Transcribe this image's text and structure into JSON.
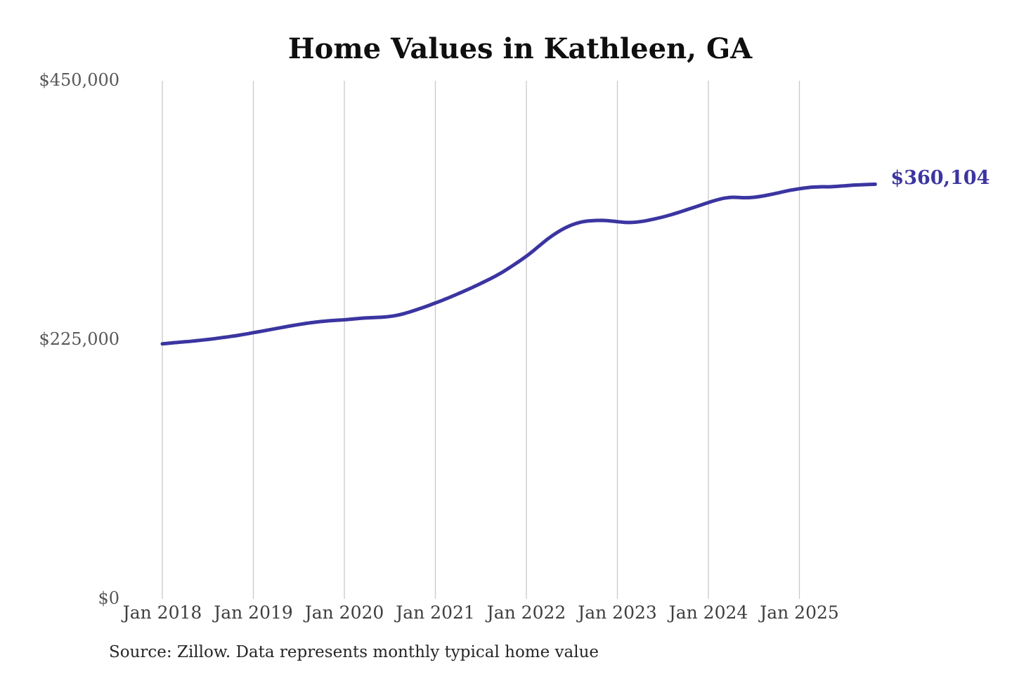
{
  "title": "Home Values in Kathleen, GA",
  "end_label": "$360,104",
  "source": "Source: Zillow. Data represents monthly typical home value",
  "colors": {
    "line": "#3b35a1",
    "end_label": "#3b35a1",
    "grid": "#c9c9c9",
    "title_text": "#0f0f0f",
    "y_tick_text": "#57575a",
    "x_tick_text": "#3f3f41",
    "source_text": "#262626",
    "background": "#ffffff"
  },
  "axes": {
    "y_ticks": [
      {
        "label": "$450,000",
        "value": 450000
      },
      {
        "label": "$225,000",
        "value": 225000
      },
      {
        "label": "$0",
        "value": 0
      }
    ],
    "x_ticks": [
      {
        "label": "Jan 2018",
        "month_index": 0
      },
      {
        "label": "Jan 2019",
        "month_index": 12
      },
      {
        "label": "Jan 2020",
        "month_index": 24
      },
      {
        "label": "Jan 2021",
        "month_index": 36
      },
      {
        "label": "Jan 2022",
        "month_index": 48
      },
      {
        "label": "Jan 2023",
        "month_index": 60
      },
      {
        "label": "Jan 2024",
        "month_index": 72
      },
      {
        "label": "Jan 2025",
        "month_index": 84
      }
    ]
  },
  "chart_data": {
    "type": "line",
    "title": "Home Values in Kathleen, GA",
    "xlabel": "",
    "ylabel": "",
    "ylim": [
      0,
      450000
    ],
    "grid": "vertical-only",
    "legend": "none",
    "unit": "USD",
    "frequency": "monthly",
    "latest_value": 360104,
    "latest_value_label": "$360,104",
    "series": [
      {
        "name": "Typical home value",
        "start_month": "2018-01",
        "end_month": "2025-11",
        "values": [
          221500,
          222100,
          222700,
          223300,
          223900,
          224600,
          225300,
          226100,
          227000,
          227900,
          228900,
          230000,
          231200,
          232400,
          233600,
          234800,
          236000,
          237200,
          238300,
          239300,
          240200,
          240900,
          241500,
          242000,
          242400,
          243000,
          243600,
          244100,
          244400,
          244700,
          245300,
          246400,
          248000,
          250000,
          252200,
          254500,
          257000,
          259500,
          262200,
          265000,
          267900,
          270900,
          274000,
          277200,
          280600,
          284400,
          288600,
          293000,
          297600,
          302800,
          308300,
          313500,
          318000,
          321800,
          324800,
          326900,
          328100,
          328600,
          328700,
          328300,
          327600,
          327000,
          327000,
          327600,
          328700,
          330100,
          331700,
          333500,
          335500,
          337600,
          339800,
          342000,
          344200,
          346300,
          347900,
          348700,
          348600,
          348400,
          348800,
          349700,
          350900,
          352300,
          353800,
          355100,
          356200,
          357100,
          357700,
          357900,
          357900,
          358300,
          358800,
          359300,
          359600,
          359900,
          360104
        ]
      }
    ]
  }
}
